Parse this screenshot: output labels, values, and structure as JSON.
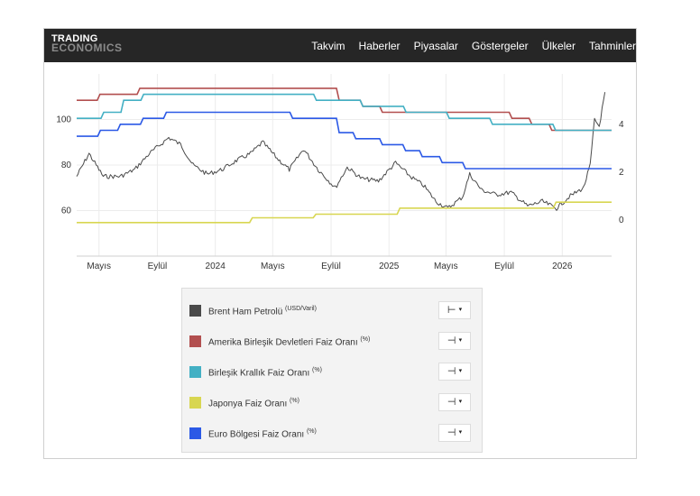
{
  "header": {
    "logo_line1": "TRADING",
    "logo_line2": "ECONOMICS",
    "nav": [
      "Takvim",
      "Haberler",
      "Piyasalar",
      "Göstergeler",
      "Ülkeler",
      "Tahminler"
    ]
  },
  "legend": {
    "items": [
      {
        "name": "Brent Ham Petrolü",
        "unit": "(USD/Varil)",
        "color": "#4a4a4a",
        "axis_button": "⊢",
        "axis": "left"
      },
      {
        "name": "Amerika Birleşik Devletleri Faiz Oranı",
        "unit": "(%)",
        "color": "#b24f4f",
        "axis_button": "⊣",
        "axis": "right"
      },
      {
        "name": "Birleşik Krallık Faiz Oranı",
        "unit": "(%)",
        "color": "#43b0c4",
        "axis_button": "⊣",
        "axis": "right"
      },
      {
        "name": "Japonya Faiz Oranı",
        "unit": "(%)",
        "color": "#d8d651",
        "axis_button": "⊣",
        "axis": "right"
      },
      {
        "name": "Euro Bölgesi Faiz Oranı",
        "unit": "(%)",
        "color": "#2b59e6",
        "axis_button": "⊣",
        "axis": "right"
      }
    ]
  },
  "chart_data": {
    "type": "line",
    "x_range": [
      "2023-03-15",
      "2026-04-15"
    ],
    "x_ticks": [
      {
        "date": "2023-05-01",
        "label": "Mayıs"
      },
      {
        "date": "2023-09-01",
        "label": "Eylül"
      },
      {
        "date": "2024-01-01",
        "label": "2024"
      },
      {
        "date": "2024-05-01",
        "label": "Mayıs"
      },
      {
        "date": "2024-09-01",
        "label": "Eylül"
      },
      {
        "date": "2025-01-01",
        "label": "2025"
      },
      {
        "date": "2025-05-01",
        "label": "Mayıs"
      },
      {
        "date": "2025-09-01",
        "label": "Eylül"
      },
      {
        "date": "2026-01-01",
        "label": "2026"
      }
    ],
    "y_left": {
      "ticks": [
        60,
        80,
        100
      ],
      "range": [
        40,
        120
      ]
    },
    "y_right": {
      "ticks": [
        0,
        2,
        4
      ],
      "range": [
        -1.5,
        6.1
      ]
    },
    "grid": true,
    "series": [
      {
        "name": "Brent Ham Petrolü",
        "axis": "left",
        "color": "#4a4a4a",
        "points": [
          [
            "2023-03-15",
            75
          ],
          [
            "2023-04-10",
            85
          ],
          [
            "2023-05-10",
            75
          ],
          [
            "2023-06-15",
            75
          ],
          [
            "2023-07-15",
            78
          ],
          [
            "2023-08-15",
            85
          ],
          [
            "2023-09-25",
            92
          ],
          [
            "2023-10-20",
            89
          ],
          [
            "2023-11-15",
            80
          ],
          [
            "2023-12-15",
            76
          ],
          [
            "2024-01-15",
            78
          ],
          [
            "2024-02-15",
            82
          ],
          [
            "2024-03-15",
            85
          ],
          [
            "2024-04-10",
            90
          ],
          [
            "2024-05-10",
            83
          ],
          [
            "2024-06-05",
            78
          ],
          [
            "2024-07-05",
            87
          ],
          [
            "2024-08-05",
            78
          ],
          [
            "2024-09-10",
            70
          ],
          [
            "2024-10-05",
            79
          ],
          [
            "2024-11-05",
            74
          ],
          [
            "2024-12-10",
            73
          ],
          [
            "2025-01-15",
            81
          ],
          [
            "2025-02-15",
            75
          ],
          [
            "2025-03-15",
            71
          ],
          [
            "2025-04-10",
            64
          ],
          [
            "2025-05-05",
            61
          ],
          [
            "2025-06-05",
            66
          ],
          [
            "2025-06-20",
            76
          ],
          [
            "2025-07-15",
            69
          ],
          [
            "2025-08-15",
            67
          ],
          [
            "2025-09-15",
            68
          ],
          [
            "2025-10-20",
            62
          ],
          [
            "2025-11-20",
            64
          ],
          [
            "2025-12-20",
            61
          ],
          [
            "2026-01-15",
            66
          ],
          [
            "2026-02-15",
            70
          ],
          [
            "2026-03-01",
            80
          ],
          [
            "2026-03-10",
            100
          ],
          [
            "2026-03-20",
            97
          ],
          [
            "2026-04-01",
            112
          ]
        ]
      },
      {
        "name": "Amerika Birleşik Devletleri Faiz Oranı",
        "axis": "right",
        "color": "#b24f4f",
        "points": [
          [
            "2023-03-15",
            5.0
          ],
          [
            "2023-05-03",
            5.25
          ],
          [
            "2023-07-26",
            5.5
          ],
          [
            "2024-09-18",
            5.0
          ],
          [
            "2024-11-07",
            4.75
          ],
          [
            "2024-12-18",
            4.5
          ],
          [
            "2025-09-17",
            4.25
          ],
          [
            "2025-10-29",
            4.0
          ],
          [
            "2025-12-10",
            3.75
          ],
          [
            "2026-04-15",
            3.75
          ]
        ]
      },
      {
        "name": "Birleşik Krallık Faiz Oranı",
        "axis": "right",
        "color": "#43b0c4",
        "points": [
          [
            "2023-03-15",
            4.25
          ],
          [
            "2023-05-11",
            4.5
          ],
          [
            "2023-06-22",
            5.0
          ],
          [
            "2023-08-03",
            5.25
          ],
          [
            "2024-08-01",
            5.0
          ],
          [
            "2024-11-07",
            4.75
          ],
          [
            "2025-02-06",
            4.5
          ],
          [
            "2025-05-08",
            4.25
          ],
          [
            "2025-08-07",
            4.0
          ],
          [
            "2025-12-18",
            3.75
          ],
          [
            "2026-04-15",
            3.75
          ]
        ]
      },
      {
        "name": "Japonya Faiz Oranı",
        "axis": "right",
        "color": "#d8d651",
        "points": [
          [
            "2023-03-15",
            -0.1
          ],
          [
            "2024-03-19",
            0.1
          ],
          [
            "2024-07-31",
            0.25
          ],
          [
            "2025-01-24",
            0.5
          ],
          [
            "2025-12-19",
            0.75
          ],
          [
            "2026-04-15",
            0.75
          ]
        ]
      },
      {
        "name": "Euro Bölgesi Faiz Oranı",
        "axis": "right",
        "color": "#2b59e6",
        "points": [
          [
            "2023-03-15",
            3.5
          ],
          [
            "2023-05-04",
            3.75
          ],
          [
            "2023-06-15",
            4.0
          ],
          [
            "2023-08-02",
            4.25
          ],
          [
            "2023-09-20",
            4.5
          ],
          [
            "2024-06-12",
            4.25
          ],
          [
            "2024-09-18",
            3.65
          ],
          [
            "2024-10-23",
            3.4
          ],
          [
            "2024-12-18",
            3.15
          ],
          [
            "2025-02-05",
            2.9
          ],
          [
            "2025-03-12",
            2.65
          ],
          [
            "2025-04-23",
            2.4
          ],
          [
            "2025-06-11",
            2.15
          ],
          [
            "2026-04-15",
            2.15
          ]
        ]
      }
    ]
  }
}
